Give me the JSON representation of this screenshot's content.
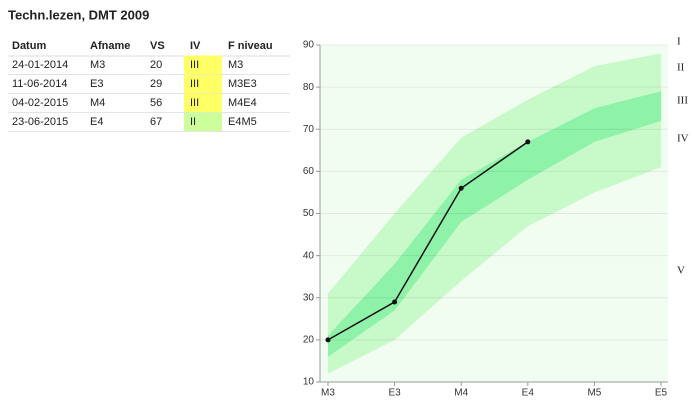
{
  "title": "Techn.lezen, DMT 2009",
  "table": {
    "headers": [
      "Datum",
      "Afname",
      "VS",
      "IV",
      "F niveau"
    ],
    "rows": [
      [
        "24-01-2014",
        "M3",
        "20",
        "III",
        "M3"
      ],
      [
        "11-06-2014",
        "E3",
        "29",
        "III",
        "M3E3"
      ],
      [
        "04-02-2015",
        "M4",
        "56",
        "III",
        "M4E4"
      ],
      [
        "23-06-2015",
        "E4",
        "67",
        "II",
        "E4M5"
      ]
    ],
    "iv_cell_colors": [
      "#ffff66",
      "#ffff66",
      "#ffff66",
      "#ccff99"
    ]
  },
  "chart_data": {
    "type": "line",
    "categories": [
      "M3",
      "E3",
      "M4",
      "E4",
      "M5",
      "E5"
    ],
    "series": [
      {
        "color": "#111111",
        "values": [
          20,
          29,
          56,
          67,
          null,
          null
        ]
      }
    ],
    "bands": [
      {
        "color": "#c8f9c8",
        "upper": [
          31,
          50,
          68,
          77,
          85,
          88
        ],
        "lower": [
          12,
          20,
          34,
          47,
          55,
          61
        ]
      },
      {
        "color": "#8ef2a8",
        "upper": [
          21,
          38,
          58,
          67,
          75,
          79
        ],
        "lower": [
          16,
          27,
          48,
          58,
          67,
          72
        ]
      }
    ],
    "zone_labels": [
      "I",
      "II",
      "III",
      "IV",
      "V"
    ],
    "ylim": [
      10,
      90
    ],
    "yticks": [
      10,
      20,
      30,
      40,
      50,
      60,
      70,
      80,
      90
    ],
    "grid": true
  }
}
